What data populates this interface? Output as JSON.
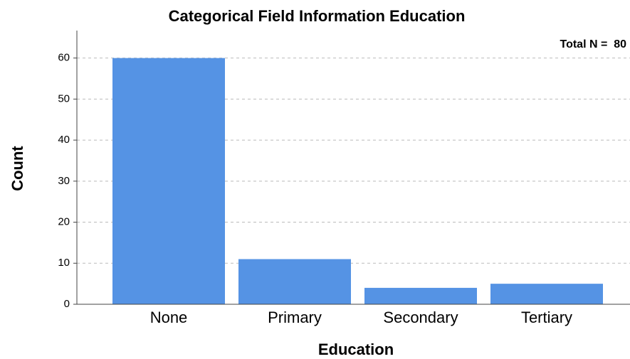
{
  "chart_data": {
    "type": "bar",
    "title": "Categorical Field Information Education",
    "annotation": "Total N =  80",
    "x_label": "Education",
    "y_label": "Count",
    "categories": [
      "None",
      "Primary",
      "Secondary",
      "Tertiary"
    ],
    "values": [
      60,
      11,
      4,
      5
    ],
    "color": "#5593e4",
    "ylim": [
      0,
      66
    ],
    "yticks": [
      0,
      10,
      20,
      30,
      40,
      50,
      60
    ],
    "grid": true
  }
}
